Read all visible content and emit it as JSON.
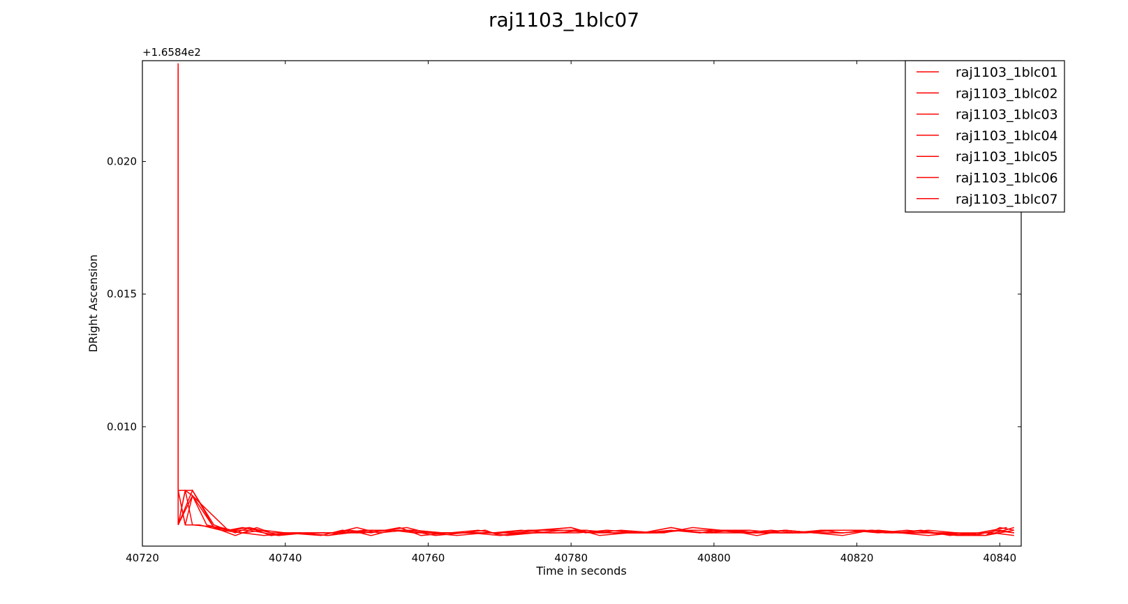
{
  "chart_data": {
    "type": "line",
    "title": "raj1103_1blc07",
    "xlabel": "Time in seconds",
    "ylabel": "DRight Ascension",
    "y_offset_label": "+1.6584e2",
    "y_offset": 165.84,
    "xlim": [
      40720,
      40843
    ],
    "ylim": [
      0.0055,
      0.0238
    ],
    "xticks": [
      40720,
      40740,
      40760,
      40780,
      40800,
      40820,
      40840
    ],
    "xtick_labels": [
      "40720",
      "40740",
      "40760",
      "40780",
      "40800",
      "40820",
      "40840"
    ],
    "yticks": [
      0.01,
      0.015,
      0.02
    ],
    "ytick_labels": [
      "0.010",
      "0.015",
      "0.020"
    ],
    "grid": false,
    "legend_position": "top-right",
    "line_color": "#ff0000",
    "series": [
      {
        "name": "raj1103_1blc01",
        "x": [
          40725,
          40725,
          40726,
          40727,
          40730,
          40732,
          40734,
          40736,
          40738,
          40740,
          40745,
          40748,
          40750,
          40755,
          40758,
          40760,
          40765,
          40768,
          40770,
          40775,
          40780,
          40782,
          40785,
          40790,
          40794,
          40798,
          40800,
          40805,
          40808,
          40812,
          40815,
          40818,
          40822,
          40826,
          40830,
          40834,
          40838,
          40840,
          40842
        ],
        "y": [
          0.0237,
          0.0063,
          0.0076,
          0.0074,
          0.0062,
          0.0061,
          0.0062,
          0.0061,
          0.0059,
          0.006,
          0.0059,
          0.0061,
          0.006,
          0.0061,
          0.006,
          0.006,
          0.006,
          0.0061,
          0.0059,
          0.0061,
          0.0062,
          0.006,
          0.0061,
          0.006,
          0.0062,
          0.006,
          0.0061,
          0.006,
          0.006,
          0.006,
          0.0061,
          0.006,
          0.0061,
          0.006,
          0.006,
          0.0059,
          0.0059,
          0.0062,
          0.0061
        ]
      },
      {
        "name": "raj1103_1blc02",
        "x": [
          40725,
          40725,
          40727,
          40730,
          40733,
          40735,
          40738,
          40741,
          40746,
          40749,
          40752,
          40756,
          40759,
          40763,
          40767,
          40771,
          40775,
          40779,
          40783,
          40787,
          40792,
          40795,
          40799,
          40803,
          40806,
          40810,
          40814,
          40818,
          40823,
          40827,
          40831,
          40835,
          40839,
          40842
        ],
        "y": [
          0.0235,
          0.0076,
          0.0076,
          0.0063,
          0.006,
          0.0062,
          0.0059,
          0.006,
          0.0059,
          0.0061,
          0.006,
          0.0062,
          0.0059,
          0.006,
          0.0061,
          0.0059,
          0.006,
          0.0061,
          0.006,
          0.0061,
          0.006,
          0.0061,
          0.006,
          0.0061,
          0.006,
          0.0061,
          0.006,
          0.006,
          0.0061,
          0.006,
          0.006,
          0.0059,
          0.0061,
          0.006
        ]
      },
      {
        "name": "raj1103_1blc03",
        "x": [
          40725,
          40726,
          40727,
          40731,
          40734,
          40737,
          40740,
          40744,
          40747,
          40750,
          40753,
          40757,
          40761,
          40765,
          40769,
          40773,
          40777,
          40781,
          40785,
          40789,
          40793,
          40797,
          40801,
          40805,
          40809,
          40813,
          40817,
          40821,
          40825,
          40829,
          40833,
          40837,
          40841
        ],
        "y": [
          0.0063,
          0.0076,
          0.0063,
          0.0062,
          0.006,
          0.0061,
          0.006,
          0.006,
          0.006,
          0.0062,
          0.006,
          0.0061,
          0.0059,
          0.006,
          0.006,
          0.0061,
          0.006,
          0.006,
          0.0061,
          0.006,
          0.006,
          0.0062,
          0.0061,
          0.0061,
          0.006,
          0.006,
          0.0061,
          0.0061,
          0.006,
          0.0061,
          0.0059,
          0.006,
          0.0062
        ]
      },
      {
        "name": "raj1103_1blc04",
        "x": [
          40725,
          40726,
          40727,
          40732,
          40735,
          40738,
          40742,
          40746,
          40749,
          40752,
          40755,
          40758,
          40762,
          40766,
          40770,
          40774,
          40778,
          40782,
          40786,
          40790,
          40794,
          40798,
          40802,
          40806,
          40810,
          40814,
          40818,
          40822,
          40826,
          40830,
          40834,
          40838,
          40842
        ],
        "y": [
          0.0076,
          0.0063,
          0.0074,
          0.0061,
          0.0062,
          0.006,
          0.006,
          0.0059,
          0.0061,
          0.0059,
          0.0061,
          0.0061,
          0.006,
          0.006,
          0.006,
          0.0061,
          0.0061,
          0.0061,
          0.006,
          0.006,
          0.0061,
          0.006,
          0.0061,
          0.0059,
          0.0061,
          0.006,
          0.0059,
          0.0061,
          0.006,
          0.0059,
          0.006,
          0.0059,
          0.0062
        ]
      },
      {
        "name": "raj1103_1blc05",
        "x": [
          40725,
          40727,
          40730,
          40733,
          40736,
          40739,
          40743,
          40747,
          40751,
          40754,
          40757,
          40760,
          40764,
          40768,
          40772,
          40776,
          40780,
          40784,
          40788,
          40792,
          40796,
          40800,
          40804,
          40808,
          40812,
          40816,
          40820,
          40824,
          40828,
          40832,
          40836,
          40840,
          40842
        ],
        "y": [
          0.0063,
          0.0076,
          0.0062,
          0.0059,
          0.0062,
          0.0059,
          0.006,
          0.006,
          0.006,
          0.0061,
          0.0062,
          0.006,
          0.0059,
          0.006,
          0.006,
          0.0061,
          0.0062,
          0.0059,
          0.006,
          0.006,
          0.0061,
          0.0061,
          0.006,
          0.0061,
          0.006,
          0.0061,
          0.0061,
          0.006,
          0.006,
          0.006,
          0.0059,
          0.0061,
          0.006
        ]
      },
      {
        "name": "raj1103_1blc06",
        "x": [
          40725,
          40726,
          40728,
          40731,
          40734,
          40737,
          40741,
          40745,
          40748,
          40751,
          40754,
          40758,
          40762,
          40766,
          40770,
          40774,
          40778,
          40782,
          40786,
          40790,
          40794,
          40798,
          40802,
          40806,
          40810,
          40814,
          40818,
          40822,
          40826,
          40830,
          40834,
          40838,
          40842
        ],
        "y": [
          0.0076,
          0.0063,
          0.0063,
          0.0061,
          0.006,
          0.0059,
          0.006,
          0.006,
          0.006,
          0.0061,
          0.0061,
          0.0061,
          0.006,
          0.006,
          0.0059,
          0.006,
          0.006,
          0.0061,
          0.006,
          0.006,
          0.0062,
          0.006,
          0.0061,
          0.006,
          0.0061,
          0.006,
          0.006,
          0.0061,
          0.006,
          0.0061,
          0.006,
          0.0059,
          0.0061
        ]
      },
      {
        "name": "raj1103_1blc07",
        "x": [
          40725,
          40727,
          40729,
          40732,
          40735,
          40739,
          40742,
          40746,
          40749,
          40752,
          40756,
          40760,
          40763,
          40767,
          40771,
          40775,
          40779,
          40783,
          40787,
          40791,
          40795,
          40799,
          40803,
          40807,
          40811,
          40815,
          40819,
          40823,
          40827,
          40831,
          40835,
          40839,
          40842
        ],
        "y": [
          0.0063,
          0.0074,
          0.0063,
          0.0061,
          0.0061,
          0.0059,
          0.006,
          0.0059,
          0.006,
          0.0061,
          0.0061,
          0.006,
          0.006,
          0.006,
          0.006,
          0.006,
          0.0061,
          0.006,
          0.006,
          0.006,
          0.0061,
          0.006,
          0.006,
          0.006,
          0.006,
          0.0061,
          0.0061,
          0.006,
          0.0061,
          0.006,
          0.006,
          0.006,
          0.0059
        ]
      }
    ]
  }
}
